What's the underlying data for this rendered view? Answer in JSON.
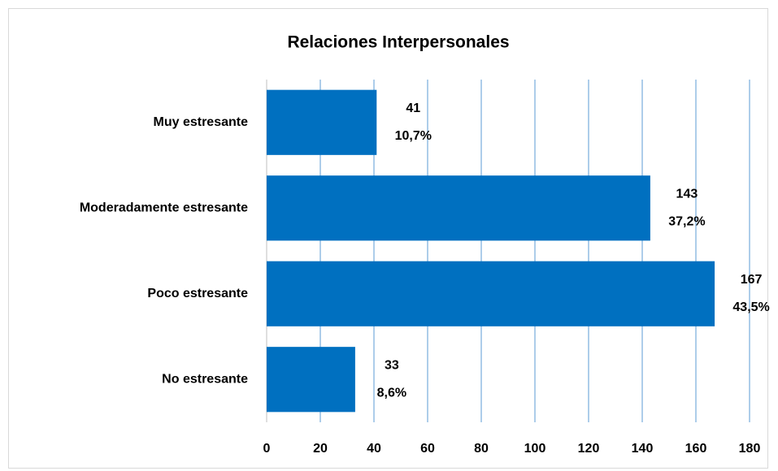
{
  "chart_data": {
    "type": "bar",
    "orientation": "horizontal",
    "title": "Relaciones Interpersonales",
    "categories": [
      "Muy estresante",
      "Moderadamente estresante",
      "Poco estresante",
      "No estresante"
    ],
    "values": [
      41,
      143,
      167,
      33
    ],
    "percent_labels": [
      "10,7%",
      "37,2%",
      "43,5%",
      "8,6%"
    ],
    "color": "#0070c0",
    "xlim": [
      0,
      180
    ],
    "xticks": [
      0,
      20,
      40,
      60,
      80,
      100,
      120,
      140,
      160,
      180
    ],
    "grid": true
  }
}
